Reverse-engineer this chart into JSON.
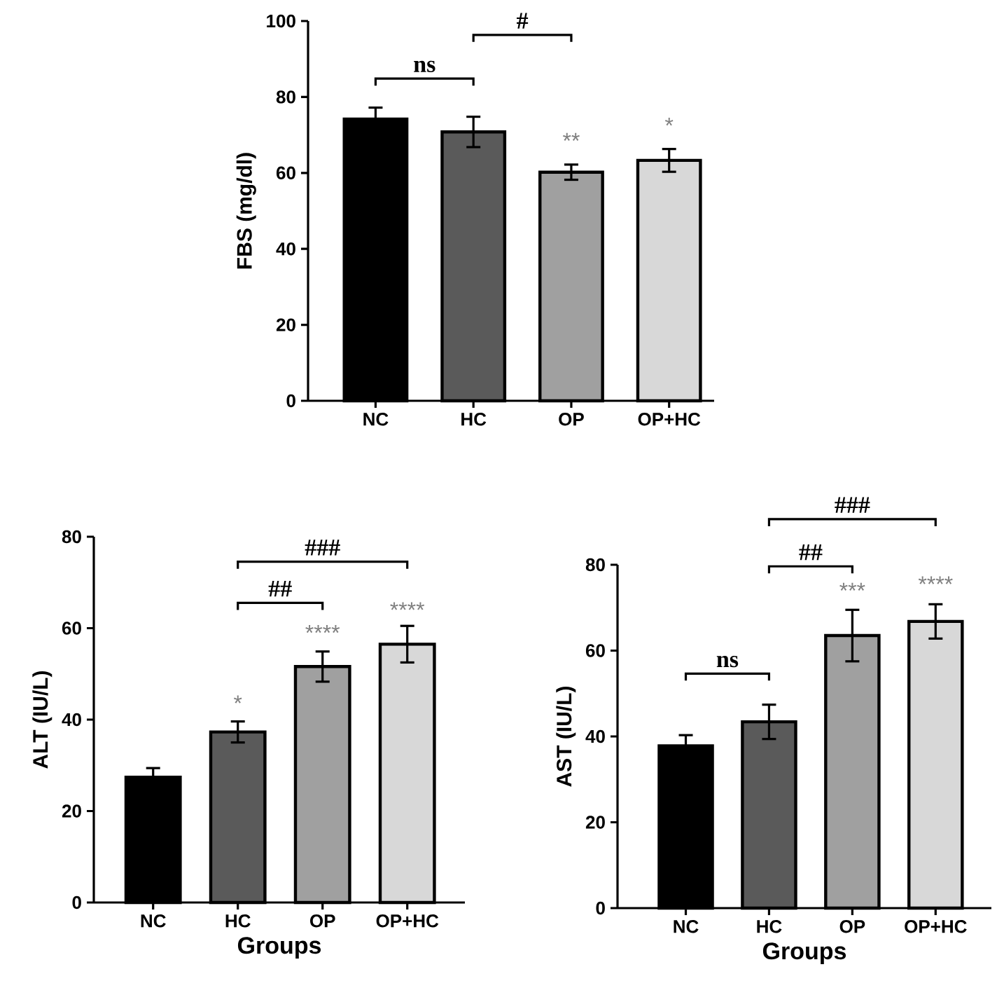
{
  "chart_data": [
    {
      "type": "bar",
      "ylabel": "FBS (mg/dl)",
      "categories": [
        "NC",
        "HC",
        "OP",
        "OP+HC"
      ],
      "values": [
        74.2,
        70.8,
        60.2,
        63.3
      ],
      "errors": [
        3,
        4,
        2,
        3
      ],
      "colors": [
        "#000000",
        "#5a5a5a",
        "#a0a0a0",
        "#d8d8d8"
      ],
      "ylim": [
        0,
        100
      ],
      "yticks": [
        0,
        20,
        40,
        60,
        80,
        100
      ],
      "grid": false,
      "annotations": [
        "ns",
        "#",
        "**",
        "*"
      ]
    },
    {
      "type": "bar",
      "ylabel": "ALT (IU/L)",
      "xlabel": "Groups",
      "categories": [
        "NC",
        "HC",
        "OP",
        "OP+HC"
      ],
      "values": [
        27.4,
        37.3,
        51.6,
        56.5
      ],
      "errors": [
        2,
        2.3,
        3.3,
        4
      ],
      "colors": [
        "#000000",
        "#5a5a5a",
        "#a0a0a0",
        "#d8d8d8"
      ],
      "ylim": [
        0,
        80
      ],
      "yticks": [
        0,
        20,
        40,
        60,
        80
      ],
      "grid": false,
      "annotations": [
        "##",
        "###",
        "*",
        "****",
        "****"
      ]
    },
    {
      "type": "bar",
      "ylabel": "AST (IU/L)",
      "xlabel": "Groups",
      "categories": [
        "NC",
        "HC",
        "OP",
        "OP+HC"
      ],
      "values": [
        37.8,
        43.4,
        63.5,
        66.8
      ],
      "errors": [
        2.5,
        4,
        6,
        4
      ],
      "colors": [
        "#000000",
        "#5a5a5a",
        "#a0a0a0",
        "#d8d8d8"
      ],
      "ylim": [
        0,
        80
      ],
      "yticks": [
        0,
        20,
        40,
        60,
        80
      ],
      "grid": false,
      "annotations": [
        "ns",
        "##",
        "###",
        "***",
        "****"
      ]
    }
  ]
}
